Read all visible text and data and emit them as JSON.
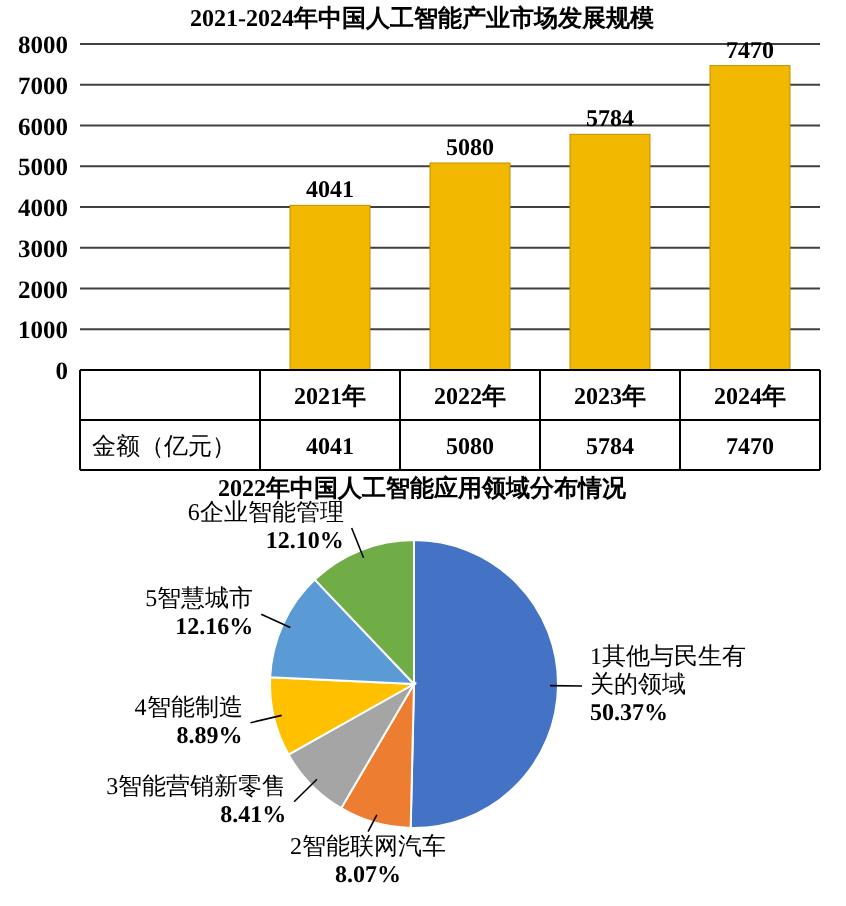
{
  "chart_data": [
    {
      "type": "bar",
      "title": "2021-2024年中国人工智能产业市场发展规模",
      "categories": [
        "2021年",
        "2022年",
        "2023年",
        "2024年"
      ],
      "series": [
        {
          "name": "金额（亿元）",
          "color": "#f2b800",
          "values": [
            4041,
            5080,
            5784,
            7470
          ],
          "value_labels": [
            "4041",
            "5080",
            "5784",
            "7470"
          ]
        }
      ],
      "ylim": [
        0,
        8000
      ],
      "yticks": [
        0,
        1000,
        2000,
        3000,
        4000,
        5000,
        6000,
        7000,
        8000
      ],
      "grid": "y",
      "data_labels": true
    },
    {
      "type": "pie",
      "title": "2022年中国人工智能应用领域分布情况",
      "categories": [
        "1其他与民生有关的领域",
        "2智能联网汽车",
        "3智能营销新零售",
        "4智能制造",
        "5智慧城市",
        "6企业智能管理"
      ],
      "values": [
        50.37,
        8.07,
        8.41,
        8.89,
        12.16,
        12.1
      ],
      "colors": [
        "#4472c4",
        "#ed7d31",
        "#a5a5a5",
        "#ffc000",
        "#5b9bd5",
        "#70ad47"
      ],
      "value_labels": [
        "50.37%",
        "8.07%",
        "8.41%",
        "8.89%",
        "12.16%",
        "12.10%"
      ]
    }
  ]
}
